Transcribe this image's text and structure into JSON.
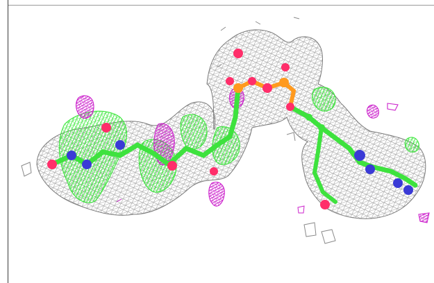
{
  "scene": {
    "subject": "electron-density-mesh-ligand",
    "colors": {
      "mesh": "#8a8a8a",
      "carbon": "#3ee23e",
      "oxygen": "#ff2e6a",
      "nitrogen": "#3a3ad6",
      "phosphorus": "#ff9a1e",
      "difference_mesh_positive": "#33e633",
      "difference_mesh_negative": "#cc22cc"
    }
  }
}
